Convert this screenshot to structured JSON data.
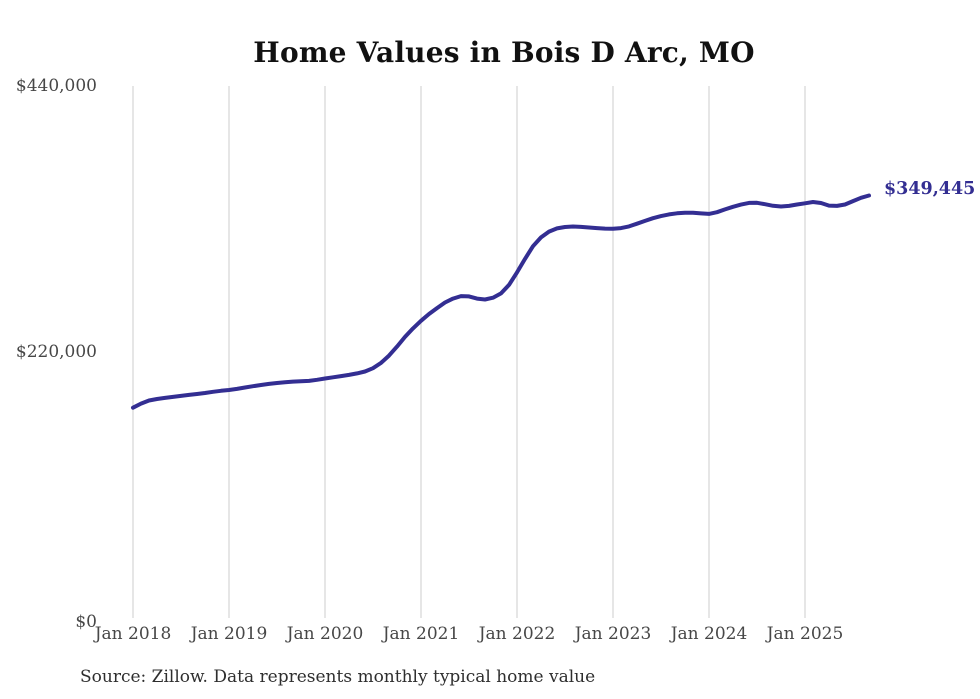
{
  "page": {
    "background": "#ffffff"
  },
  "chart_data": {
    "type": "line",
    "title": "Home Values in Bois D Arc, MO",
    "source_note": "Source: Zillow. Data represents monthly typical home value",
    "end_label": "$349,445",
    "current_value": 349445,
    "line_color": "#332e92",
    "grid_color": "#cccccc",
    "axis_text_color": "#474747",
    "ylim": [
      0,
      440000
    ],
    "grid": "vertical-only",
    "legend": "none",
    "yticks": [
      {
        "value": 0,
        "label": "$0"
      },
      {
        "value": 220000,
        "label": "$220,000"
      },
      {
        "value": 440000,
        "label": "$440,000"
      }
    ],
    "xticks": [
      {
        "month": "2018-01",
        "label": "Jan 2018"
      },
      {
        "month": "2019-01",
        "label": "Jan 2019"
      },
      {
        "month": "2020-01",
        "label": "Jan 2020"
      },
      {
        "month": "2021-01",
        "label": "Jan 2021"
      },
      {
        "month": "2022-01",
        "label": "Jan 2022"
      },
      {
        "month": "2023-01",
        "label": "Jan 2023"
      },
      {
        "month": "2024-01",
        "label": "Jan 2024"
      },
      {
        "month": "2025-01",
        "label": "Jan 2025"
      }
    ],
    "series": [
      {
        "name": "Monthly typical home value",
        "months": [
          "2018-01",
          "2018-02",
          "2018-03",
          "2018-04",
          "2018-05",
          "2018-06",
          "2018-07",
          "2018-08",
          "2018-09",
          "2018-10",
          "2018-11",
          "2018-12",
          "2019-01",
          "2019-02",
          "2019-03",
          "2019-04",
          "2019-05",
          "2019-06",
          "2019-07",
          "2019-08",
          "2019-09",
          "2019-10",
          "2019-11",
          "2019-12",
          "2020-01",
          "2020-02",
          "2020-03",
          "2020-04",
          "2020-05",
          "2020-06",
          "2020-07",
          "2020-08",
          "2020-09",
          "2020-10",
          "2020-11",
          "2020-12",
          "2021-01",
          "2021-02",
          "2021-03",
          "2021-04",
          "2021-05",
          "2021-06",
          "2021-07",
          "2021-08",
          "2021-09",
          "2021-10",
          "2021-11",
          "2021-12",
          "2022-01",
          "2022-02",
          "2022-03",
          "2022-04",
          "2022-05",
          "2022-06",
          "2022-07",
          "2022-08",
          "2022-09",
          "2022-10",
          "2022-11",
          "2022-12",
          "2023-01",
          "2023-02",
          "2023-03",
          "2023-04",
          "2023-05",
          "2023-06",
          "2023-07",
          "2023-08",
          "2023-09",
          "2023-10",
          "2023-11",
          "2023-12",
          "2024-01",
          "2024-02",
          "2024-03",
          "2024-04",
          "2024-05",
          "2024-06",
          "2024-07",
          "2024-08",
          "2024-09",
          "2024-10",
          "2024-11",
          "2024-12",
          "2025-01",
          "2025-02",
          "2025-03",
          "2025-04",
          "2025-05",
          "2025-06",
          "2025-07",
          "2025-08",
          "2025-09"
        ],
        "values": [
          173900,
          177300,
          179900,
          181100,
          182000,
          182900,
          183700,
          184500,
          185300,
          186100,
          187100,
          187900,
          188600,
          189500,
          190600,
          191700,
          192700,
          193600,
          194400,
          195000,
          195500,
          195800,
          196100,
          197000,
          198100,
          199100,
          200100,
          201100,
          202300,
          203900,
          206600,
          211000,
          217000,
          224500,
          232500,
          239500,
          245800,
          251400,
          256300,
          260900,
          264200,
          266200,
          266000,
          264200,
          263400,
          264900,
          268500,
          275500,
          285800,
          297000,
          307500,
          314800,
          319600,
          322200,
          323400,
          323800,
          323500,
          323000,
          322500,
          322100,
          321900,
          322500,
          323900,
          326100,
          328400,
          330700,
          332400,
          333800,
          334700,
          335200,
          335100,
          334600,
          334200,
          335600,
          337900,
          340100,
          341900,
          343300,
          343400,
          342200,
          340900,
          340300,
          340800,
          342000,
          343000,
          344100,
          343200,
          341100,
          340800,
          342000,
          344800,
          347500,
          349445
        ]
      }
    ]
  }
}
